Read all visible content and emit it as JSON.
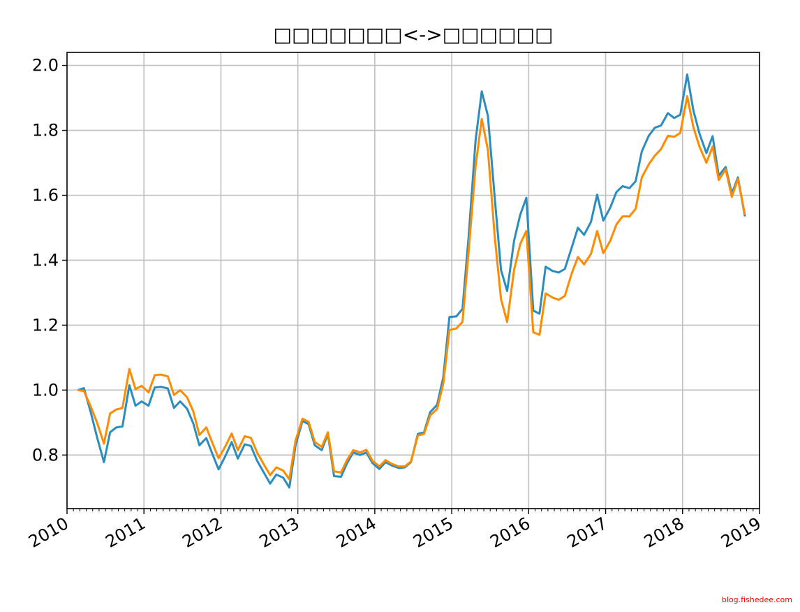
{
  "chart_data": {
    "type": "line",
    "title": "□□□□□□□<->□□□□□□",
    "xlabel": "",
    "ylabel": "",
    "xlim": [
      2010.0,
      2019.0
    ],
    "ylim": [
      0.635,
      2.04
    ],
    "x_ticks": [
      "2010",
      "2011",
      "2012",
      "2013",
      "2014",
      "2015",
      "2016",
      "2017",
      "2018",
      "2019"
    ],
    "y_ticks": [
      "0.8",
      "1.0",
      "1.2",
      "1.4",
      "1.6",
      "1.8",
      "2.0"
    ],
    "grid": true,
    "colors": [
      "#2b8cbe",
      "#ff8c00"
    ],
    "series": [
      {
        "values": [
          [
            2010.14,
            1.0
          ],
          [
            2010.22,
            1.006
          ],
          [
            2010.31,
            0.93
          ],
          [
            2010.39,
            0.855
          ],
          [
            2010.48,
            0.778
          ],
          [
            2010.56,
            0.87
          ],
          [
            2010.64,
            0.885
          ],
          [
            2010.72,
            0.888
          ],
          [
            2010.81,
            1.015
          ],
          [
            2010.89,
            0.952
          ],
          [
            2010.97,
            0.965
          ],
          [
            2011.06,
            0.952
          ],
          [
            2011.14,
            1.008
          ],
          [
            2011.22,
            1.01
          ],
          [
            2011.31,
            1.005
          ],
          [
            2011.39,
            0.945
          ],
          [
            2011.47,
            0.965
          ],
          [
            2011.56,
            0.943
          ],
          [
            2011.64,
            0.898
          ],
          [
            2011.72,
            0.83
          ],
          [
            2011.81,
            0.852
          ],
          [
            2011.89,
            0.803
          ],
          [
            2011.97,
            0.756
          ],
          [
            2012.06,
            0.798
          ],
          [
            2012.14,
            0.84
          ],
          [
            2012.22,
            0.789
          ],
          [
            2012.31,
            0.833
          ],
          [
            2012.39,
            0.828
          ],
          [
            2012.47,
            0.783
          ],
          [
            2012.56,
            0.745
          ],
          [
            2012.64,
            0.712
          ],
          [
            2012.72,
            0.74
          ],
          [
            2012.81,
            0.73
          ],
          [
            2012.89,
            0.7
          ],
          [
            2012.97,
            0.83
          ],
          [
            2013.06,
            0.905
          ],
          [
            2013.14,
            0.895
          ],
          [
            2013.22,
            0.83
          ],
          [
            2013.31,
            0.815
          ],
          [
            2013.39,
            0.865
          ],
          [
            2013.47,
            0.735
          ],
          [
            2013.56,
            0.733
          ],
          [
            2013.64,
            0.775
          ],
          [
            2013.72,
            0.808
          ],
          [
            2013.81,
            0.8
          ],
          [
            2013.89,
            0.808
          ],
          [
            2013.97,
            0.775
          ],
          [
            2014.06,
            0.757
          ],
          [
            2014.14,
            0.778
          ],
          [
            2014.22,
            0.768
          ],
          [
            2014.31,
            0.76
          ],
          [
            2014.39,
            0.762
          ],
          [
            2014.47,
            0.778
          ],
          [
            2014.56,
            0.865
          ],
          [
            2014.64,
            0.87
          ],
          [
            2014.72,
            0.932
          ],
          [
            2014.81,
            0.955
          ],
          [
            2014.89,
            1.04
          ],
          [
            2014.97,
            1.225
          ],
          [
            2015.06,
            1.227
          ],
          [
            2015.14,
            1.25
          ],
          [
            2015.22,
            1.475
          ],
          [
            2015.31,
            1.77
          ],
          [
            2015.39,
            1.92
          ],
          [
            2015.47,
            1.845
          ],
          [
            2015.56,
            1.59
          ],
          [
            2015.64,
            1.37
          ],
          [
            2015.72,
            1.305
          ],
          [
            2015.81,
            1.46
          ],
          [
            2015.89,
            1.54
          ],
          [
            2015.97,
            1.592
          ],
          [
            2016.06,
            1.245
          ],
          [
            2016.14,
            1.235
          ],
          [
            2016.22,
            1.38
          ],
          [
            2016.31,
            1.367
          ],
          [
            2016.39,
            1.362
          ],
          [
            2016.47,
            1.373
          ],
          [
            2016.56,
            1.44
          ],
          [
            2016.64,
            1.5
          ],
          [
            2016.72,
            1.478
          ],
          [
            2016.81,
            1.518
          ],
          [
            2016.89,
            1.602
          ],
          [
            2016.97,
            1.522
          ],
          [
            2017.06,
            1.562
          ],
          [
            2017.14,
            1.61
          ],
          [
            2017.22,
            1.628
          ],
          [
            2017.31,
            1.622
          ],
          [
            2017.39,
            1.643
          ],
          [
            2017.47,
            1.735
          ],
          [
            2017.56,
            1.783
          ],
          [
            2017.64,
            1.808
          ],
          [
            2017.72,
            1.815
          ],
          [
            2017.81,
            1.853
          ],
          [
            2017.89,
            1.838
          ],
          [
            2017.97,
            1.848
          ],
          [
            2018.06,
            1.972
          ],
          [
            2018.14,
            1.862
          ],
          [
            2018.22,
            1.79
          ],
          [
            2018.31,
            1.73
          ],
          [
            2018.39,
            1.782
          ],
          [
            2018.47,
            1.66
          ],
          [
            2018.56,
            1.687
          ],
          [
            2018.64,
            1.605
          ],
          [
            2018.72,
            1.655
          ],
          [
            2018.81,
            1.535
          ]
        ]
      },
      {
        "values": [
          [
            2010.14,
            1.0
          ],
          [
            2010.22,
            0.997
          ],
          [
            2010.31,
            0.948
          ],
          [
            2010.39,
            0.9
          ],
          [
            2010.48,
            0.835
          ],
          [
            2010.56,
            0.928
          ],
          [
            2010.64,
            0.94
          ],
          [
            2010.72,
            0.945
          ],
          [
            2010.81,
            1.065
          ],
          [
            2010.89,
            1.003
          ],
          [
            2010.97,
            1.013
          ],
          [
            2011.06,
            0.993
          ],
          [
            2011.14,
            1.046
          ],
          [
            2011.22,
            1.048
          ],
          [
            2011.31,
            1.042
          ],
          [
            2011.39,
            0.985
          ],
          [
            2011.47,
            1.0
          ],
          [
            2011.56,
            0.978
          ],
          [
            2011.64,
            0.935
          ],
          [
            2011.72,
            0.862
          ],
          [
            2011.81,
            0.885
          ],
          [
            2011.89,
            0.837
          ],
          [
            2011.97,
            0.79
          ],
          [
            2012.06,
            0.828
          ],
          [
            2012.14,
            0.866
          ],
          [
            2012.22,
            0.815
          ],
          [
            2012.31,
            0.858
          ],
          [
            2012.39,
            0.853
          ],
          [
            2012.47,
            0.808
          ],
          [
            2012.56,
            0.77
          ],
          [
            2012.64,
            0.738
          ],
          [
            2012.72,
            0.762
          ],
          [
            2012.81,
            0.752
          ],
          [
            2012.89,
            0.725
          ],
          [
            2012.97,
            0.845
          ],
          [
            2013.06,
            0.912
          ],
          [
            2013.14,
            0.902
          ],
          [
            2013.22,
            0.84
          ],
          [
            2013.31,
            0.825
          ],
          [
            2013.39,
            0.87
          ],
          [
            2013.47,
            0.75
          ],
          [
            2013.56,
            0.746
          ],
          [
            2013.64,
            0.785
          ],
          [
            2013.72,
            0.815
          ],
          [
            2013.81,
            0.808
          ],
          [
            2013.89,
            0.816
          ],
          [
            2013.97,
            0.782
          ],
          [
            2014.06,
            0.765
          ],
          [
            2014.14,
            0.784
          ],
          [
            2014.22,
            0.773
          ],
          [
            2014.31,
            0.765
          ],
          [
            2014.39,
            0.765
          ],
          [
            2014.47,
            0.78
          ],
          [
            2014.56,
            0.86
          ],
          [
            2014.64,
            0.865
          ],
          [
            2014.72,
            0.922
          ],
          [
            2014.81,
            0.942
          ],
          [
            2014.89,
            1.02
          ],
          [
            2014.97,
            1.185
          ],
          [
            2015.06,
            1.19
          ],
          [
            2015.14,
            1.21
          ],
          [
            2015.22,
            1.43
          ],
          [
            2015.31,
            1.69
          ],
          [
            2015.39,
            1.835
          ],
          [
            2015.47,
            1.74
          ],
          [
            2015.56,
            1.47
          ],
          [
            2015.64,
            1.28
          ],
          [
            2015.72,
            1.21
          ],
          [
            2015.81,
            1.37
          ],
          [
            2015.89,
            1.45
          ],
          [
            2015.97,
            1.49
          ],
          [
            2016.06,
            1.178
          ],
          [
            2016.14,
            1.17
          ],
          [
            2016.22,
            1.298
          ],
          [
            2016.31,
            1.285
          ],
          [
            2016.39,
            1.278
          ],
          [
            2016.47,
            1.29
          ],
          [
            2016.56,
            1.36
          ],
          [
            2016.64,
            1.41
          ],
          [
            2016.72,
            1.387
          ],
          [
            2016.81,
            1.42
          ],
          [
            2016.89,
            1.49
          ],
          [
            2016.97,
            1.422
          ],
          [
            2017.06,
            1.46
          ],
          [
            2017.14,
            1.51
          ],
          [
            2017.22,
            1.535
          ],
          [
            2017.31,
            1.535
          ],
          [
            2017.39,
            1.558
          ],
          [
            2017.47,
            1.655
          ],
          [
            2017.56,
            1.695
          ],
          [
            2017.64,
            1.722
          ],
          [
            2017.72,
            1.742
          ],
          [
            2017.81,
            1.783
          ],
          [
            2017.89,
            1.78
          ],
          [
            2017.97,
            1.792
          ],
          [
            2018.06,
            1.905
          ],
          [
            2018.14,
            1.81
          ],
          [
            2018.22,
            1.75
          ],
          [
            2018.31,
            1.7
          ],
          [
            2018.39,
            1.75
          ],
          [
            2018.47,
            1.647
          ],
          [
            2018.56,
            1.68
          ],
          [
            2018.64,
            1.595
          ],
          [
            2018.72,
            1.65
          ],
          [
            2018.81,
            1.54
          ]
        ]
      }
    ]
  },
  "watermark": "blog.fishedee.com"
}
